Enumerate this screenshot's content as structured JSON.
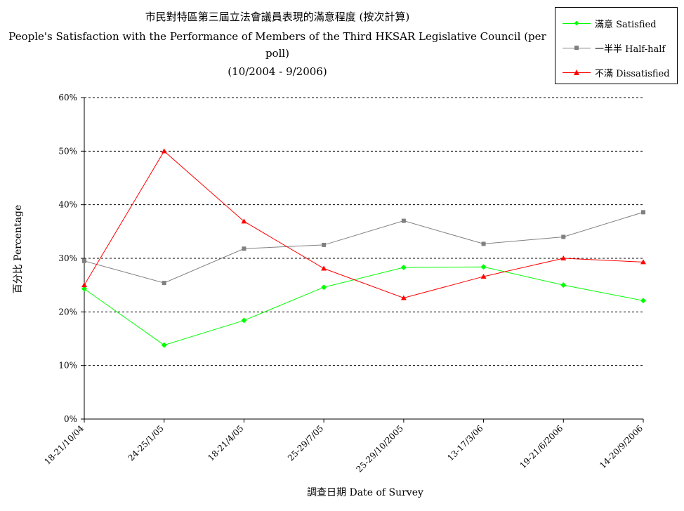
{
  "title": {
    "line1": "市民對特區第三屆立法會議員表現的滿意程度 (按次計算)",
    "line2": "People's Satisfaction with the Performance of Members of the Third HKSAR Legislative Council (per",
    "line3": "poll)",
    "line4": "(10/2004 - 9/2006)"
  },
  "legend": {
    "items": [
      {
        "label": "滿意 Satisfied",
        "color": "#00ff00",
        "marker": "diamond"
      },
      {
        "label": "一半半 Half-half",
        "color": "#808080",
        "marker": "square"
      },
      {
        "label": "不滿 Dissatisfied",
        "color": "#ff0000",
        "marker": "triangle"
      }
    ]
  },
  "chart_data": {
    "type": "line",
    "title": "市民對特區第三屆立法會議員表現的滿意程度 (按次計算)",
    "xlabel": "調查日期 Date of Survey",
    "ylabel": "百分比 Percentage",
    "categories": [
      "18-21/10/04",
      "24-25/1/05",
      "18-21/4/05",
      "25-29/7/05",
      "25-29/10/2005",
      "13-17/3/06",
      "19-21/6/2006",
      "14-20/9/2006"
    ],
    "ylim": [
      0,
      60
    ],
    "yticks": [
      "0%",
      "10%",
      "20%",
      "30%",
      "40%",
      "50%",
      "60%"
    ],
    "grid": true,
    "legend_position": "top-right",
    "series": [
      {
        "name": "滿意 Satisfied",
        "color": "#00ff00",
        "marker": "diamond",
        "values": [
          24.3,
          13.8,
          18.4,
          24.6,
          28.3,
          28.4,
          25.0,
          22.1
        ]
      },
      {
        "name": "一半半 Half-half",
        "color": "#808080",
        "marker": "square",
        "values": [
          29.5,
          25.4,
          31.8,
          32.5,
          37.0,
          32.7,
          34.0,
          38.6
        ]
      },
      {
        "name": "不滿 Dissatisfied",
        "color": "#ff0000",
        "marker": "triangle",
        "values": [
          25.0,
          50.0,
          36.9,
          28.1,
          22.6,
          26.6,
          30.0,
          29.3
        ]
      }
    ]
  }
}
